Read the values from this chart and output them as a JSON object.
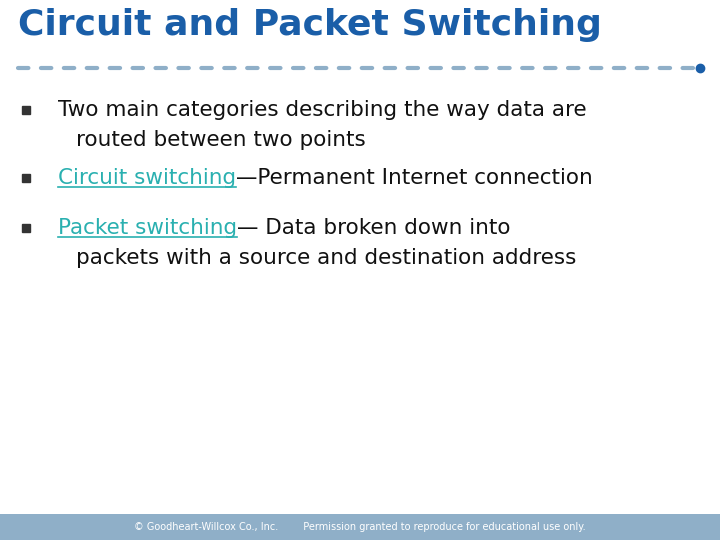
{
  "title": "Circuit and Packet Switching",
  "title_color": "#1a5ea8",
  "title_fontsize": 26,
  "bg_color": "#ffffff",
  "footer_bg_color": "#8fafc8",
  "footer_text1": "© Goodheart-Willcox Co., Inc.",
  "footer_text2": "Permission granted to reproduce for educational use only.",
  "footer_color": "#ffffff",
  "footer_fontsize": 7.0,
  "dot_color": "#8fafc8",
  "dot_color_dark": "#1a5ea8",
  "bullet_color": "#333333",
  "body_fontsize": 15.5,
  "body_color": "#111111",
  "link_color": "#2ab0b0",
  "items": [
    {
      "line1_parts": [
        {
          "text": "Two main categories describing the way data are",
          "link": false
        }
      ],
      "line2": "routed between two points"
    },
    {
      "line1_parts": [
        {
          "text": "Circuit switching",
          "link": true
        },
        {
          "text": "—Permanent Internet connection",
          "link": false
        }
      ],
      "line2": null
    },
    {
      "line1_parts": [
        {
          "text": "Packet switching",
          "link": true
        },
        {
          "text": "— Data broken down into",
          "link": false
        }
      ],
      "line2": "packets with a source and destination address"
    }
  ]
}
